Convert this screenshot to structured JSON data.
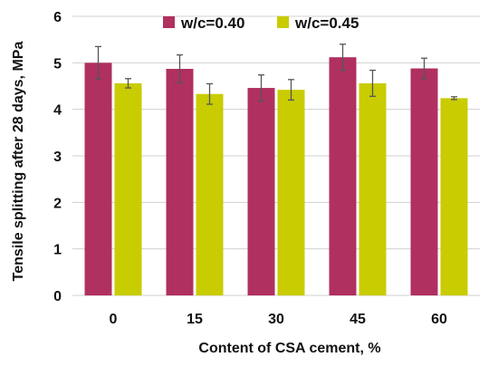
{
  "chart_data": {
    "type": "bar",
    "categories": [
      "0",
      "15",
      "30",
      "45",
      "60"
    ],
    "series": [
      {
        "name": "w/c=0.40",
        "color": "#b03060",
        "values": [
          5.0,
          4.87,
          4.46,
          5.12,
          4.88
        ],
        "errors": [
          0.35,
          0.3,
          0.28,
          0.28,
          0.22
        ]
      },
      {
        "name": "w/c=0.45",
        "color": "#c8cc00",
        "values": [
          4.56,
          4.33,
          4.42,
          4.56,
          4.24
        ],
        "errors": [
          0.1,
          0.22,
          0.22,
          0.28,
          0.03
        ]
      }
    ],
    "xlabel": "Content of CSA cement, %",
    "ylabel": "Tensile splitting after 28 days, MPa",
    "ylim": [
      0,
      6
    ],
    "yticks": [
      0,
      1,
      2,
      3,
      4,
      5,
      6
    ],
    "grid": "horizontal",
    "legend_position": "top",
    "gridline_color": "#d0d0d0",
    "errorbar_color": "#555555"
  }
}
